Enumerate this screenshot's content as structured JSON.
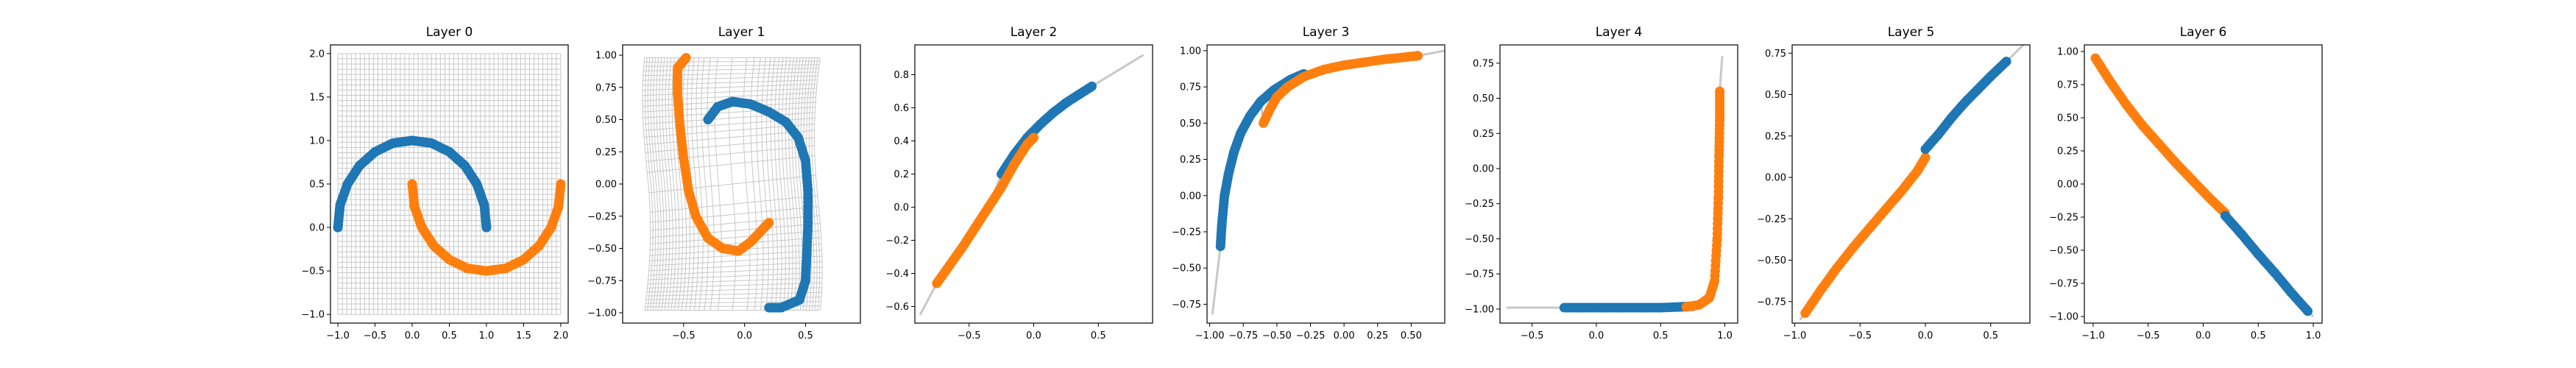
{
  "figure": {
    "background": "#ffffff"
  },
  "colors": {
    "class0": "#1f77b4",
    "class1": "#ff7f0e",
    "grid": "#c8c8c8",
    "axis": "#000000"
  },
  "chart_data": [
    {
      "type": "scatter",
      "title": "Layer 0",
      "xlim": [
        -1.1,
        2.1
      ],
      "ylim": [
        -1.1,
        2.1
      ],
      "xticks": [
        -1.0,
        -0.5,
        0.0,
        0.5,
        1.0,
        1.5,
        2.0
      ],
      "xtick_labels": [
        "−1.0",
        "−0.5",
        "0.0",
        "0.5",
        "1.0",
        "1.5",
        "2.0"
      ],
      "yticks": [
        -1.0,
        -0.5,
        0.0,
        0.5,
        1.0,
        1.5,
        2.0
      ],
      "ytick_labels": [
        "−1.0",
        "−0.5",
        "0.0",
        "0.5",
        "1.0",
        "1.5",
        "2.0"
      ],
      "grid_mesh": "regular grid over [-1,2]×[-1,2]",
      "series": [
        {
          "color": "#1f77b4",
          "points": [
            [
              -1.0,
              0.0
            ],
            [
              -0.97,
              0.26
            ],
            [
              -0.87,
              0.5
            ],
            [
              -0.71,
              0.71
            ],
            [
              -0.5,
              0.87
            ],
            [
              -0.26,
              0.97
            ],
            [
              0.0,
              1.0
            ],
            [
              0.26,
              0.97
            ],
            [
              0.5,
              0.87
            ],
            [
              0.71,
              0.71
            ],
            [
              0.87,
              0.5
            ],
            [
              0.97,
              0.26
            ],
            [
              1.0,
              0.0
            ]
          ]
        },
        {
          "color": "#ff7f0e",
          "points": [
            [
              0.0,
              0.5
            ],
            [
              0.03,
              0.24
            ],
            [
              0.13,
              0.0
            ],
            [
              0.29,
              -0.21
            ],
            [
              0.5,
              -0.37
            ],
            [
              0.74,
              -0.47
            ],
            [
              1.0,
              -0.5
            ],
            [
              1.26,
              -0.47
            ],
            [
              1.5,
              -0.37
            ],
            [
              1.71,
              -0.21
            ],
            [
              1.87,
              0.0
            ],
            [
              1.97,
              0.24
            ],
            [
              2.0,
              0.5
            ]
          ]
        }
      ]
    },
    {
      "type": "scatter",
      "title": "Layer 1",
      "xlim": [
        -1.0,
        0.95
      ],
      "ylim": [
        -1.08,
        1.08
      ],
      "xticks": [
        -0.5,
        0.0,
        0.5
      ],
      "xtick_labels": [
        "−0.5",
        "0.0",
        "0.5"
      ],
      "yticks": [
        -1.0,
        -0.75,
        -0.5,
        -0.25,
        0.0,
        0.25,
        0.5,
        0.75,
        1.0
      ],
      "ytick_labels": [
        "−1.00",
        "−0.75",
        "−0.50",
        "−0.25",
        "0.00",
        "0.25",
        "0.50",
        "0.75",
        "1.00"
      ],
      "grid_mesh": "warped grid",
      "series": [
        {
          "color": "#1f77b4",
          "points": [
            [
              -0.3,
              0.5
            ],
            [
              -0.22,
              0.6
            ],
            [
              -0.1,
              0.64
            ],
            [
              0.05,
              0.62
            ],
            [
              0.2,
              0.56
            ],
            [
              0.34,
              0.48
            ],
            [
              0.44,
              0.36
            ],
            [
              0.5,
              0.18
            ],
            [
              0.52,
              -0.05
            ],
            [
              0.52,
              -0.3
            ],
            [
              0.51,
              -0.55
            ],
            [
              0.5,
              -0.75
            ],
            [
              0.45,
              -0.9
            ],
            [
              0.3,
              -0.96
            ],
            [
              0.2,
              -0.96
            ]
          ]
        },
        {
          "color": "#ff7f0e",
          "points": [
            [
              -0.48,
              0.98
            ],
            [
              -0.55,
              0.9
            ],
            [
              -0.55,
              0.7
            ],
            [
              -0.53,
              0.45
            ],
            [
              -0.5,
              0.2
            ],
            [
              -0.46,
              -0.05
            ],
            [
              -0.4,
              -0.25
            ],
            [
              -0.3,
              -0.42
            ],
            [
              -0.18,
              -0.5
            ],
            [
              -0.05,
              -0.52
            ],
            [
              0.05,
              -0.45
            ],
            [
              0.13,
              -0.37
            ],
            [
              0.2,
              -0.3
            ]
          ]
        }
      ]
    },
    {
      "type": "scatter",
      "title": "Layer 2",
      "xlim": [
        -0.92,
        0.92
      ],
      "ylim": [
        -0.7,
        0.98
      ],
      "xticks": [
        -0.5,
        0.0,
        0.5
      ],
      "xtick_labels": [
        "−0.5",
        "0.0",
        "0.5"
      ],
      "yticks": [
        -0.6,
        -0.4,
        -0.2,
        0.0,
        0.2,
        0.4,
        0.6,
        0.8
      ],
      "ytick_labels": [
        "−0.6",
        "−0.4",
        "−0.2",
        "0.0",
        "0.2",
        "0.4",
        "0.6",
        "0.8"
      ],
      "grid_mesh": "collapsed thin curve",
      "series": [
        {
          "color": "#1f77b4",
          "points": [
            [
              -0.25,
              0.2
            ],
            [
              -0.15,
              0.32
            ],
            [
              -0.05,
              0.42
            ],
            [
              0.05,
              0.5
            ],
            [
              0.15,
              0.57
            ],
            [
              0.25,
              0.63
            ],
            [
              0.35,
              0.68
            ],
            [
              0.45,
              0.73
            ]
          ]
        },
        {
          "color": "#ff7f0e",
          "points": [
            [
              -0.75,
              -0.46
            ],
            [
              -0.65,
              -0.35
            ],
            [
              -0.55,
              -0.24
            ],
            [
              -0.45,
              -0.12
            ],
            [
              -0.35,
              0.0
            ],
            [
              -0.25,
              0.12
            ],
            [
              -0.15,
              0.26
            ],
            [
              -0.05,
              0.38
            ],
            [
              0.0,
              0.42
            ]
          ]
        }
      ]
    },
    {
      "type": "scatter",
      "title": "Layer 3",
      "xlim": [
        -1.02,
        0.75
      ],
      "ylim": [
        -0.88,
        1.04
      ],
      "xticks": [
        -1.0,
        -0.75,
        -0.5,
        -0.25,
        0.0,
        0.25,
        0.5
      ],
      "xtick_labels": [
        "−1.00",
        "−0.75",
        "−0.50",
        "−0.25",
        "0.00",
        "0.25",
        "0.50"
      ],
      "yticks": [
        -0.75,
        -0.5,
        -0.25,
        0.0,
        0.25,
        0.5,
        0.75,
        1.0
      ],
      "ytick_labels": [
        "−0.75",
        "−0.50",
        "−0.25",
        "0.00",
        "0.25",
        "0.50",
        "0.75",
        "1.00"
      ],
      "grid_mesh": "collapsed thin curve",
      "series": [
        {
          "color": "#1f77b4",
          "points": [
            [
              -0.92,
              -0.35
            ],
            [
              -0.91,
              -0.2
            ],
            [
              -0.89,
              0.0
            ],
            [
              -0.86,
              0.15
            ],
            [
              -0.82,
              0.3
            ],
            [
              -0.77,
              0.43
            ],
            [
              -0.7,
              0.55
            ],
            [
              -0.62,
              0.65
            ],
            [
              -0.52,
              0.73
            ],
            [
              -0.4,
              0.8
            ],
            [
              -0.3,
              0.84
            ]
          ]
        },
        {
          "color": "#ff7f0e",
          "points": [
            [
              -0.6,
              0.5
            ],
            [
              -0.55,
              0.6
            ],
            [
              -0.5,
              0.68
            ],
            [
              -0.42,
              0.75
            ],
            [
              -0.3,
              0.82
            ],
            [
              -0.15,
              0.87
            ],
            [
              0.0,
              0.9
            ],
            [
              0.15,
              0.92
            ],
            [
              0.3,
              0.94
            ],
            [
              0.45,
              0.955
            ],
            [
              0.55,
              0.965
            ]
          ]
        }
      ]
    },
    {
      "type": "scatter",
      "title": "Layer 4",
      "xlim": [
        -0.75,
        1.1
      ],
      "ylim": [
        -1.1,
        0.88
      ],
      "xticks": [
        -0.5,
        0.0,
        0.5,
        1.0
      ],
      "xtick_labels": [
        "−0.5",
        "0.0",
        "0.5",
        "1.0"
      ],
      "yticks": [
        -1.0,
        -0.75,
        -0.5,
        -0.25,
        0.0,
        0.25,
        0.5,
        0.75
      ],
      "ytick_labels": [
        "−1.00",
        "−0.75",
        "−0.50",
        "−0.25",
        "0.00",
        "0.25",
        "0.50",
        "0.75"
      ],
      "grid_mesh": "collapsed L-shaped curve",
      "series": [
        {
          "color": "#1f77b4",
          "points": [
            [
              -0.25,
              -0.99
            ],
            [
              -0.1,
              -0.99
            ],
            [
              0.05,
              -0.99
            ],
            [
              0.2,
              -0.99
            ],
            [
              0.35,
              -0.99
            ],
            [
              0.5,
              -0.99
            ],
            [
              0.65,
              -0.985
            ],
            [
              0.75,
              -0.98
            ]
          ]
        },
        {
          "color": "#ff7f0e",
          "points": [
            [
              0.7,
              -0.985
            ],
            [
              0.8,
              -0.97
            ],
            [
              0.88,
              -0.92
            ],
            [
              0.92,
              -0.8
            ],
            [
              0.94,
              -0.5
            ],
            [
              0.95,
              -0.2
            ],
            [
              0.955,
              0.1
            ],
            [
              0.96,
              0.35
            ],
            [
              0.96,
              0.55
            ]
          ]
        }
      ]
    },
    {
      "type": "scatter",
      "title": "Layer 5",
      "xlim": [
        -1.02,
        0.8
      ],
      "ylim": [
        -0.88,
        0.8
      ],
      "xticks": [
        -1.0,
        -0.5,
        0.0,
        0.5
      ],
      "xtick_labels": [
        "−1.0",
        "−0.5",
        "0.0",
        "0.5"
      ],
      "yticks": [
        -0.75,
        -0.5,
        -0.25,
        0.0,
        0.25,
        0.5,
        0.75
      ],
      "ytick_labels": [
        "−0.75",
        "−0.50",
        "−0.25",
        "0.00",
        "0.25",
        "0.50",
        "0.75"
      ],
      "grid_mesh": "collapsed thin curve",
      "series": [
        {
          "color": "#ff7f0e",
          "points": [
            [
              -0.92,
              -0.82
            ],
            [
              -0.8,
              -0.68
            ],
            [
              -0.68,
              -0.55
            ],
            [
              -0.55,
              -0.42
            ],
            [
              -0.42,
              -0.3
            ],
            [
              -0.3,
              -0.19
            ],
            [
              -0.18,
              -0.08
            ],
            [
              -0.06,
              0.04
            ],
            [
              0.0,
              0.12
            ]
          ]
        },
        {
          "color": "#1f77b4",
          "points": [
            [
              0.0,
              0.17
            ],
            [
              0.1,
              0.26
            ],
            [
              0.2,
              0.36
            ],
            [
              0.3,
              0.45
            ],
            [
              0.4,
              0.53
            ],
            [
              0.5,
              0.61
            ],
            [
              0.62,
              0.7
            ]
          ]
        }
      ]
    },
    {
      "type": "scatter",
      "title": "Layer 6",
      "xlim": [
        -1.08,
        1.08
      ],
      "ylim": [
        -1.05,
        1.05
      ],
      "xticks": [
        -1.0,
        -0.5,
        0.0,
        0.5,
        1.0
      ],
      "xtick_labels": [
        "−1.0",
        "−0.5",
        "0.0",
        "0.5",
        "1.0"
      ],
      "yticks": [
        -1.0,
        -0.75,
        -0.5,
        -0.25,
        0.0,
        0.25,
        0.5,
        0.75,
        1.0
      ],
      "ytick_labels": [
        "−1.00",
        "−0.75",
        "−0.50",
        "−0.25",
        "0.00",
        "0.25",
        "0.50",
        "0.75",
        "1.00"
      ],
      "grid_mesh": "collapsed thin curve",
      "series": [
        {
          "color": "#ff7f0e",
          "points": [
            [
              -0.98,
              0.95
            ],
            [
              -0.85,
              0.78
            ],
            [
              -0.7,
              0.6
            ],
            [
              -0.55,
              0.44
            ],
            [
              -0.4,
              0.3
            ],
            [
              -0.25,
              0.16
            ],
            [
              -0.1,
              0.03
            ],
            [
              0.05,
              -0.1
            ],
            [
              0.2,
              -0.22
            ]
          ]
        },
        {
          "color": "#1f77b4",
          "points": [
            [
              0.2,
              -0.24
            ],
            [
              0.35,
              -0.38
            ],
            [
              0.5,
              -0.53
            ],
            [
              0.65,
              -0.67
            ],
            [
              0.8,
              -0.82
            ],
            [
              0.95,
              -0.96
            ]
          ]
        }
      ]
    }
  ]
}
